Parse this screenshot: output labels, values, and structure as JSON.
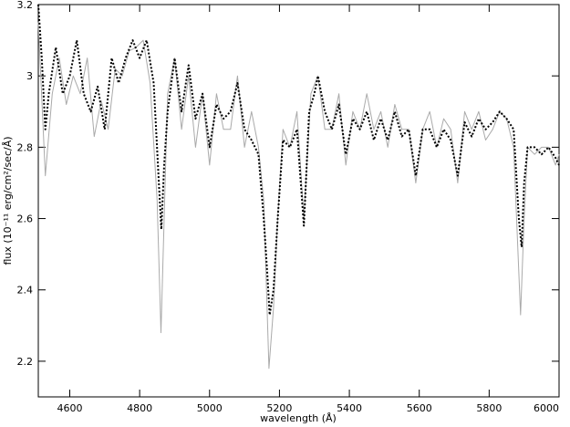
{
  "chart_data": {
    "type": "line",
    "xlabel": "wavelength (Å)",
    "ylabel": "flux (10⁻¹¹ erg/cm²/sec/Å)",
    "xlim": [
      4510,
      6000
    ],
    "ylim": [
      2.1,
      3.2
    ],
    "xticks": [
      4600,
      4800,
      5000,
      5200,
      5400,
      5600,
      5800,
      6000
    ],
    "yticks": [
      2.2,
      2.4,
      2.6,
      2.8,
      3,
      3.2
    ],
    "series": [
      {
        "color": "#aaaaaa",
        "dash": "none",
        "x": [
          4510,
          4530,
          4550,
          4570,
          4590,
          4610,
          4630,
          4650,
          4670,
          4690,
          4710,
          4730,
          4750,
          4770,
          4790,
          4810,
          4830,
          4850,
          4861,
          4870,
          4880,
          4900,
          4920,
          4940,
          4960,
          4980,
          5000,
          5020,
          5040,
          5060,
          5080,
          5100,
          5120,
          5140,
          5155,
          5170,
          5183,
          5195,
          5210,
          5230,
          5250,
          5270,
          5290,
          5310,
          5330,
          5350,
          5370,
          5390,
          5410,
          5430,
          5450,
          5470,
          5490,
          5510,
          5530,
          5550,
          5570,
          5590,
          5610,
          5630,
          5650,
          5670,
          5690,
          5710,
          5730,
          5750,
          5770,
          5790,
          5810,
          5830,
          5850,
          5870,
          5890,
          5900,
          5910,
          5930,
          5950,
          5970,
          5990,
          6000
        ],
        "values": [
          3.15,
          2.72,
          2.95,
          3.05,
          2.92,
          3.0,
          2.95,
          3.05,
          2.83,
          2.93,
          2.85,
          3.02,
          3.0,
          3.07,
          3.08,
          3.1,
          2.98,
          2.65,
          2.28,
          2.6,
          2.95,
          3.05,
          2.85,
          3.0,
          2.8,
          2.95,
          2.75,
          2.95,
          2.85,
          2.85,
          3.0,
          2.8,
          2.9,
          2.8,
          2.65,
          2.18,
          2.35,
          2.6,
          2.85,
          2.8,
          2.9,
          2.6,
          2.95,
          3.0,
          2.85,
          2.85,
          2.95,
          2.75,
          2.9,
          2.85,
          2.95,
          2.85,
          2.9,
          2.8,
          2.92,
          2.85,
          2.85,
          2.7,
          2.85,
          2.9,
          2.8,
          2.88,
          2.85,
          2.7,
          2.9,
          2.85,
          2.9,
          2.82,
          2.85,
          2.9,
          2.88,
          2.8,
          2.33,
          2.6,
          2.8,
          2.78,
          2.8,
          2.8,
          2.75,
          2.78
        ]
      },
      {
        "color": "#000000",
        "dash": "dotted",
        "x": [
          4510,
          4520,
          4530,
          4540,
          4560,
          4580,
          4600,
          4620,
          4640,
          4660,
          4680,
          4700,
          4720,
          4740,
          4760,
          4780,
          4800,
          4820,
          4840,
          4855,
          4862,
          4870,
          4880,
          4900,
          4920,
          4940,
          4960,
          4980,
          5000,
          5020,
          5040,
          5060,
          5080,
          5100,
          5120,
          5140,
          5155,
          5165,
          5172,
          5183,
          5195,
          5210,
          5230,
          5250,
          5270,
          5285,
          5300,
          5310,
          5330,
          5350,
          5370,
          5390,
          5410,
          5430,
          5450,
          5470,
          5490,
          5510,
          5530,
          5550,
          5570,
          5590,
          5610,
          5630,
          5650,
          5670,
          5690,
          5710,
          5730,
          5750,
          5770,
          5790,
          5810,
          5830,
          5850,
          5870,
          5885,
          5893,
          5900,
          5910,
          5930,
          5950,
          5970,
          5990,
          6000
        ],
        "values": [
          3.2,
          3.05,
          2.85,
          2.95,
          3.08,
          2.95,
          3.0,
          3.1,
          2.95,
          2.9,
          2.97,
          2.85,
          3.05,
          2.98,
          3.05,
          3.1,
          3.05,
          3.1,
          2.98,
          2.7,
          2.57,
          2.75,
          2.9,
          3.05,
          2.9,
          3.03,
          2.88,
          2.95,
          2.8,
          2.92,
          2.88,
          2.9,
          2.98,
          2.85,
          2.82,
          2.78,
          2.6,
          2.45,
          2.33,
          2.4,
          2.6,
          2.82,
          2.8,
          2.85,
          2.58,
          2.9,
          2.95,
          3.0,
          2.9,
          2.85,
          2.92,
          2.78,
          2.88,
          2.85,
          2.9,
          2.82,
          2.88,
          2.82,
          2.9,
          2.83,
          2.85,
          2.72,
          2.85,
          2.85,
          2.8,
          2.85,
          2.82,
          2.72,
          2.87,
          2.83,
          2.88,
          2.85,
          2.87,
          2.9,
          2.88,
          2.85,
          2.6,
          2.52,
          2.7,
          2.8,
          2.8,
          2.78,
          2.8,
          2.77,
          2.75
        ]
      }
    ]
  }
}
